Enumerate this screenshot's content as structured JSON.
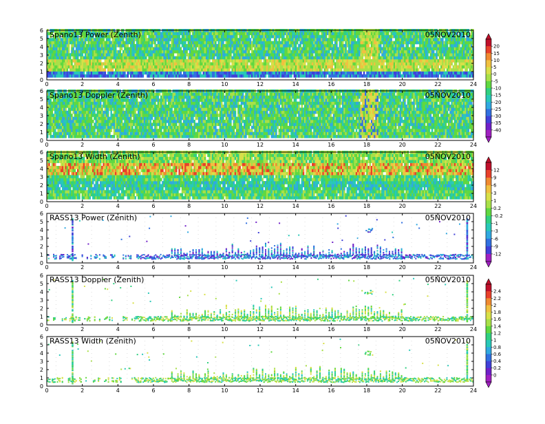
{
  "chart_data": [
    {
      "type": "heatmap",
      "title": "Spano13 Power (Zenith)",
      "date": "05NOV2010",
      "x_ticks": [
        0,
        2,
        4,
        6,
        8,
        10,
        12,
        14,
        16,
        18,
        20,
        22,
        24
      ],
      "y_ticks": [
        0,
        1,
        2,
        3,
        4,
        5,
        6
      ],
      "xlim": [
        0,
        24
      ],
      "ylim": [
        0,
        6
      ],
      "data_mode": "dense",
      "colorbar": "power"
    },
    {
      "type": "heatmap",
      "title": "Spano13 Doppler (Zenith)",
      "date": "05NOV2010",
      "x_ticks": [
        0,
        2,
        4,
        6,
        8,
        10,
        12,
        14,
        16,
        18,
        20,
        22,
        24
      ],
      "y_ticks": [
        0,
        1,
        2,
        3,
        4,
        5,
        6
      ],
      "xlim": [
        0,
        24
      ],
      "ylim": [
        0,
        6
      ],
      "data_mode": "dense"
    },
    {
      "type": "heatmap",
      "title": "Spano13 Width (Zenith)",
      "date": "05NOV2010",
      "x_ticks": [
        0,
        2,
        4,
        6,
        8,
        10,
        12,
        14,
        16,
        18,
        20,
        22,
        24
      ],
      "y_ticks": [
        0,
        1,
        2,
        3,
        4,
        5,
        6
      ],
      "xlim": [
        0,
        24
      ],
      "ylim": [
        0,
        6
      ],
      "data_mode": "dense-width",
      "colorbar": "width"
    },
    {
      "type": "heatmap",
      "title": "RASS13 Power (Zenith)",
      "date": "05NOV2010",
      "x_ticks": [
        0,
        2,
        4,
        6,
        8,
        10,
        12,
        14,
        16,
        18,
        20,
        22,
        24
      ],
      "y_ticks": [
        0,
        1,
        2,
        3,
        4,
        5,
        6
      ],
      "xlim": [
        0,
        24
      ],
      "ylim": [
        0,
        6
      ],
      "data_mode": "sparse-blue"
    },
    {
      "type": "heatmap",
      "title": "RASS13 Doppler (Zenith)",
      "date": "05NOV2010",
      "x_ticks": [
        0,
        2,
        4,
        6,
        8,
        10,
        12,
        14,
        16,
        18,
        20,
        22,
        24
      ],
      "y_ticks": [
        0,
        1,
        2,
        3,
        4,
        5,
        6
      ],
      "xlim": [
        0,
        24
      ],
      "ylim": [
        0,
        6
      ],
      "data_mode": "sparse-green",
      "colorbar": "rass"
    },
    {
      "type": "heatmap",
      "title": "RASS13 Width (Zenith)",
      "date": "05NOV2010",
      "x_ticks": [
        0,
        2,
        4,
        6,
        8,
        10,
        12,
        14,
        16,
        18,
        20,
        22,
        24
      ],
      "y_ticks": [
        0,
        1,
        2,
        3,
        4,
        5,
        6
      ],
      "xlim": [
        0,
        24
      ],
      "ylim": [
        0,
        6
      ],
      "data_mode": "sparse-green"
    }
  ],
  "colorbars": {
    "power": {
      "labels": [
        "20",
        "15",
        "10",
        "5",
        "0",
        "-5",
        "-10",
        "-15",
        "-20",
        "-25",
        "-30",
        "-35",
        "-40"
      ],
      "colors": [
        "#c0102a",
        "#e8402a",
        "#f08a30",
        "#f0c040",
        "#d8e048",
        "#a8e048",
        "#60d840",
        "#30d080",
        "#28c8b8",
        "#30a8e0",
        "#3070e0",
        "#4040d8",
        "#7020c8",
        "#a020c0"
      ]
    },
    "width": {
      "labels": [
        "12",
        "9",
        "6",
        "3",
        "1",
        "0.2",
        "-0.2",
        "-1",
        "-3",
        "-6",
        "-9",
        "-12"
      ],
      "colors": [
        "#c0102a",
        "#e8402a",
        "#f08a30",
        "#f0c040",
        "#d8e048",
        "#a8e048",
        "#60d840",
        "#30d080",
        "#28c8b8",
        "#30a8e0",
        "#3070e0",
        "#4040d8",
        "#a020c0"
      ]
    },
    "rass": {
      "labels": [
        "2.4",
        "2.2",
        "2",
        "1.8",
        "1.6",
        "1.4",
        "1.2",
        "1",
        "0.8",
        "0.6",
        "0.4",
        "0.2",
        "0"
      ],
      "colors": [
        "#c0102a",
        "#e8402a",
        "#f08a30",
        "#f0c040",
        "#d8e048",
        "#a8e048",
        "#60d840",
        "#30d080",
        "#28c8b8",
        "#30a8e0",
        "#3070e0",
        "#4040d8",
        "#7020c8",
        "#a020c0"
      ]
    }
  }
}
